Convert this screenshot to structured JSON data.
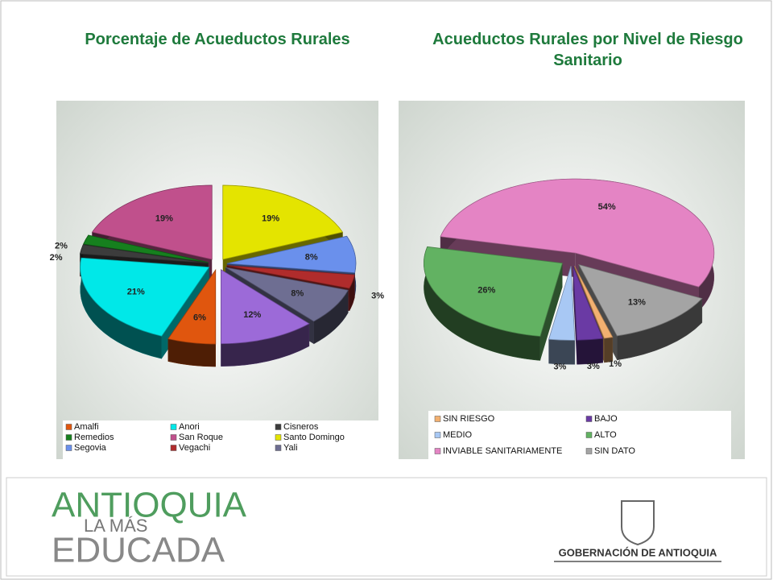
{
  "chart_data": [
    {
      "type": "pie",
      "title": "Porcentaje de Acueductos Rurales",
      "categories": [
        "Amalfi",
        "Anori",
        "Cisneros",
        "Remedios",
        "San Roque",
        "Santo Domingo",
        "Segovia",
        "Vegachi",
        "Yali",
        null
      ],
      "values": [
        6,
        21,
        2,
        2,
        19,
        19,
        8,
        3,
        8,
        12
      ],
      "value_labels": [
        "6%",
        "21%",
        "2%",
        "2%",
        "19%",
        "19%",
        "8%",
        "3%",
        "8%",
        "12%"
      ],
      "colors": [
        "#e0560e",
        "#00e8e8",
        "#3c3c3c",
        "#16801e",
        "#c0508c",
        "#e4e400",
        "#6a90ec",
        "#b02c2c",
        "#6e6e92",
        "#9c6ad8"
      ],
      "legend": "bottom"
    },
    {
      "type": "pie",
      "title": "Acueductos Rurales por Nivel de Riesgo Sanitario",
      "categories": [
        "SIN RIESGO",
        "BAJO",
        "MEDIO",
        "ALTO",
        "INVIABLE SANITARIAMENTE",
        "SIN DATO"
      ],
      "values": [
        1,
        3,
        3,
        26,
        54,
        13
      ],
      "value_labels": [
        "1%",
        "3%",
        "3%",
        "26%",
        "54%",
        "13%"
      ],
      "colors": [
        "#f2b070",
        "#6a3aa4",
        "#a8c8f4",
        "#62b262",
        "#e484c4",
        "#a4a4a4"
      ],
      "legend": "bottom"
    }
  ],
  "footer": {
    "brand_line1": "ANTIOQUIA",
    "brand_line2": "LA MÁS",
    "brand_line3": "EDUCADA",
    "government": "GOBERNACIÓN DE ANTIOQUIA"
  }
}
